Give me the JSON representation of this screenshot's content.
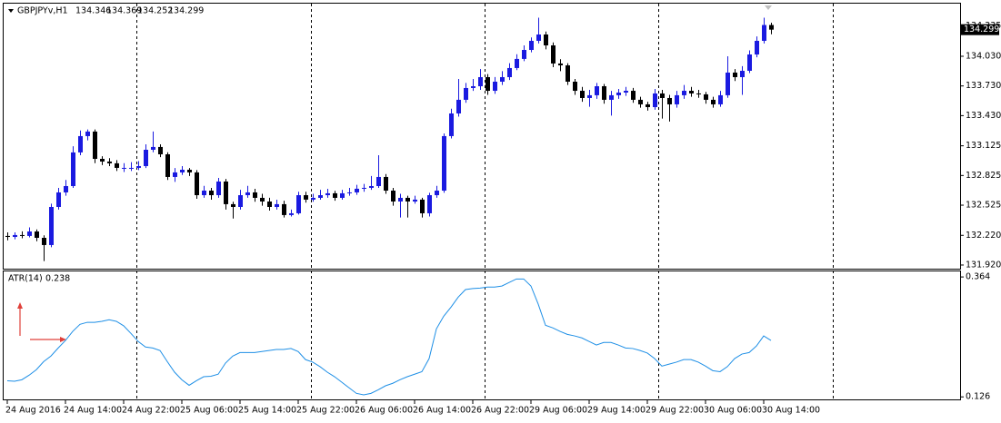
{
  "chart_data": [
    {
      "type": "candlestick",
      "title": "GBPJPYv,H1",
      "quote": [
        134.346,
        134.369,
        134.252,
        134.299
      ],
      "categories": [
        "24 Aug 2016",
        null,
        null,
        null,
        null,
        null,
        null,
        null,
        "24 Aug 14:00",
        null,
        null,
        null,
        null,
        null,
        null,
        null,
        "24 Aug 22:00",
        null,
        null,
        null,
        null,
        null,
        null,
        null,
        "25 Aug 06:00",
        null,
        null,
        null,
        null,
        null,
        null,
        null,
        "25 Aug 14:00",
        null,
        null,
        null,
        null,
        null,
        null,
        null,
        "25 Aug 22:00",
        null,
        null,
        null,
        null,
        null,
        null,
        null,
        "26 Aug 06:00",
        null,
        null,
        null,
        null,
        null,
        null,
        null,
        "26 Aug 14:00",
        null,
        null,
        null,
        null,
        null,
        null,
        null,
        "26 Aug 22:00",
        null,
        null,
        null,
        null,
        null,
        null,
        null,
        "29 Aug 06:00",
        null,
        null,
        null,
        null,
        null,
        null,
        null,
        "29 Aug 14:00",
        null,
        null,
        null,
        null,
        null,
        null,
        null,
        "29 Aug 22:00",
        null,
        null,
        null,
        null,
        null,
        null,
        null,
        "30 Aug 06:00",
        null,
        null,
        null,
        null,
        null,
        null,
        null,
        "30 Aug 14:00",
        null
      ],
      "open": [
        132.214,
        132.204,
        132.223,
        132.214,
        132.259,
        132.195,
        132.122,
        132.507,
        132.654,
        132.718,
        133.058,
        133.223,
        133.269,
        132.993,
        132.966,
        132.948,
        132.902,
        132.902,
        132.902,
        132.92,
        133.085,
        133.113,
        133.039,
        132.81,
        132.856,
        132.883,
        132.856,
        132.626,
        132.672,
        132.626,
        132.764,
        132.535,
        132.507,
        132.626,
        132.654,
        132.599,
        132.562,
        132.507,
        132.535,
        132.425,
        132.443,
        132.626,
        132.581,
        132.599,
        132.626,
        132.645,
        132.599,
        132.645,
        132.654,
        132.691,
        132.7,
        132.718,
        132.81,
        132.672,
        132.562,
        132.599,
        132.562,
        132.581,
        132.443,
        132.626,
        132.672,
        133.223,
        133.452,
        133.59,
        133.709,
        133.727,
        133.819,
        133.681,
        133.773,
        133.819,
        133.911,
        134.003,
        134.094,
        134.186,
        134.25,
        134.14,
        133.957,
        133.938,
        133.773,
        133.681,
        133.608,
        133.636,
        133.727,
        133.59,
        133.636,
        133.663,
        133.681,
        133.59,
        133.544,
        133.516,
        133.654,
        133.608,
        133.544,
        133.636,
        133.681,
        133.654,
        133.645,
        133.59,
        133.544,
        133.636,
        133.865,
        133.819,
        133.883,
        134.048,
        134.186,
        134.346
      ],
      "high": [
        132.25,
        132.25,
        132.26,
        132.3,
        132.28,
        132.22,
        132.54,
        132.7,
        132.78,
        133.12,
        133.28,
        133.29,
        133.29,
        133.02,
        133.0,
        132.98,
        132.95,
        132.96,
        132.97,
        133.14,
        133.27,
        133.14,
        133.06,
        132.9,
        132.92,
        132.9,
        132.88,
        132.72,
        132.7,
        132.8,
        132.79,
        132.56,
        132.68,
        132.72,
        132.69,
        132.64,
        132.6,
        132.58,
        132.57,
        132.48,
        132.66,
        132.66,
        132.64,
        132.68,
        132.69,
        132.67,
        132.68,
        132.7,
        132.73,
        132.74,
        132.82,
        133.03,
        132.84,
        132.7,
        132.64,
        132.62,
        132.62,
        132.6,
        132.65,
        132.72,
        133.25,
        133.5,
        133.8,
        133.76,
        133.8,
        133.9,
        133.85,
        133.82,
        133.88,
        133.96,
        134.05,
        134.14,
        134.22,
        134.42,
        134.28,
        134.17,
        134.0,
        133.96,
        133.8,
        133.72,
        133.69,
        133.76,
        133.75,
        133.68,
        133.7,
        133.72,
        133.71,
        133.62,
        133.57,
        133.7,
        133.69,
        133.64,
        133.68,
        133.74,
        133.72,
        133.69,
        133.67,
        133.62,
        133.68,
        134.03,
        133.9,
        133.93,
        134.09,
        134.23,
        134.42,
        134.369
      ],
      "low": [
        132.17,
        132.18,
        132.19,
        132.2,
        132.16,
        131.96,
        132.1,
        132.48,
        132.62,
        132.7,
        133.03,
        133.18,
        132.95,
        132.93,
        132.92,
        132.87,
        132.86,
        132.87,
        132.88,
        132.9,
        133.06,
        133.01,
        132.78,
        132.76,
        132.83,
        132.82,
        132.59,
        132.6,
        132.58,
        132.6,
        132.48,
        132.39,
        132.48,
        132.6,
        132.56,
        132.52,
        132.47,
        132.48,
        132.4,
        132.41,
        132.43,
        132.55,
        132.56,
        132.58,
        132.6,
        132.57,
        132.58,
        132.62,
        132.63,
        132.66,
        132.68,
        132.7,
        132.64,
        132.52,
        132.4,
        132.4,
        132.54,
        132.4,
        132.41,
        132.6,
        132.65,
        133.2,
        133.42,
        133.56,
        133.68,
        133.69,
        133.64,
        133.65,
        133.74,
        133.79,
        133.89,
        133.98,
        134.07,
        134.16,
        134.1,
        133.92,
        133.88,
        133.74,
        133.64,
        133.57,
        133.52,
        133.6,
        133.55,
        133.43,
        133.6,
        133.63,
        133.56,
        133.51,
        133.48,
        133.49,
        133.4,
        133.37,
        133.51,
        133.6,
        133.62,
        133.61,
        133.55,
        133.51,
        133.52,
        133.61,
        133.78,
        133.64,
        133.86,
        134.02,
        134.16,
        134.252
      ],
      "close": [
        132.204,
        132.223,
        132.214,
        132.259,
        132.195,
        132.122,
        132.507,
        132.654,
        132.718,
        133.058,
        133.223,
        133.269,
        132.993,
        132.966,
        132.948,
        132.902,
        132.902,
        132.902,
        132.92,
        133.085,
        133.113,
        133.039,
        132.81,
        132.856,
        132.883,
        132.856,
        132.626,
        132.672,
        132.626,
        132.764,
        132.535,
        132.507,
        132.626,
        132.654,
        132.599,
        132.562,
        132.507,
        132.535,
        132.425,
        132.443,
        132.626,
        132.581,
        132.599,
        132.626,
        132.645,
        132.599,
        132.645,
        132.654,
        132.691,
        132.7,
        132.718,
        132.81,
        132.672,
        132.562,
        132.599,
        132.562,
        132.581,
        132.443,
        132.626,
        132.672,
        133.223,
        133.452,
        133.59,
        133.709,
        133.727,
        133.819,
        133.681,
        133.773,
        133.819,
        133.911,
        134.003,
        134.094,
        134.186,
        134.25,
        134.14,
        133.957,
        133.938,
        133.773,
        133.681,
        133.608,
        133.636,
        133.727,
        133.59,
        133.636,
        133.663,
        133.681,
        133.59,
        133.544,
        133.516,
        133.654,
        133.608,
        133.544,
        133.636,
        133.681,
        133.654,
        133.645,
        133.59,
        133.544,
        133.636,
        133.865,
        133.819,
        133.883,
        134.048,
        134.186,
        134.346,
        134.299
      ],
      "up_color": "#1a1ae0",
      "down_color": "#000000",
      "ylim": [
        131.883,
        134.562
      ],
      "yticks": [
        {
          "value": 131.92,
          "label": "131.920"
        },
        {
          "value": 132.22,
          "label": "132.220"
        },
        132.525,
        132.825,
        133.125,
        {
          "value": 133.43,
          "label": "133.430"
        },
        {
          "value": 133.73,
          "label": "133.730"
        },
        {
          "value": 134.03,
          "label": "134.030"
        },
        134.335
      ]
    },
    {
      "type": "line",
      "series": [
        {
          "name": "ATR(14)",
          "color": "#1e8fe6",
          "values": [
            0.158,
            0.157,
            0.16,
            0.169,
            0.18,
            0.196,
            0.207,
            0.223,
            0.238,
            0.256,
            0.27,
            0.274,
            0.274,
            0.276,
            0.279,
            0.276,
            0.267,
            0.252,
            0.236,
            0.225,
            0.223,
            0.218,
            0.196,
            0.175,
            0.16,
            0.149,
            0.158,
            0.166,
            0.167,
            0.171,
            0.193,
            0.207,
            0.214,
            0.214,
            0.214,
            0.216,
            0.218,
            0.22,
            0.22,
            0.222,
            0.216,
            0.2,
            0.195,
            0.186,
            0.175,
            0.166,
            0.155,
            0.144,
            0.133,
            0.13,
            0.133,
            0.14,
            0.148,
            0.153,
            0.16,
            0.166,
            0.171,
            0.176,
            0.202,
            0.261,
            0.286,
            0.304,
            0.324,
            0.339,
            0.341,
            0.342,
            0.344,
            0.344,
            0.346,
            0.353,
            0.36,
            0.36,
            0.346,
            0.31,
            0.268,
            0.263,
            0.256,
            0.25,
            0.247,
            0.243,
            0.236,
            0.229,
            0.234,
            0.234,
            0.229,
            0.223,
            0.222,
            0.218,
            0.213,
            0.202,
            0.187,
            0.191,
            0.195,
            0.2,
            0.2,
            0.195,
            0.187,
            0.178,
            0.176,
            0.186,
            0.202,
            0.211,
            0.214,
            0.227,
            0.247,
            0.238
          ]
        }
      ],
      "ylim": [
        0.121,
        0.375
      ],
      "yticks": [
        0.126,
        0.364
      ]
    }
  ]
}
